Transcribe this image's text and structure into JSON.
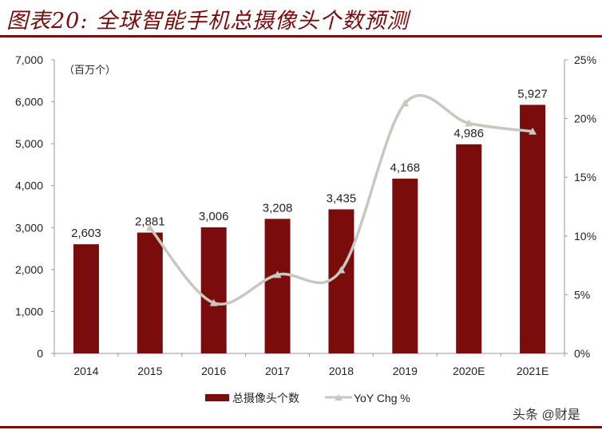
{
  "title": "图表20:  全球智能手机总摄像头个数预测",
  "watermark": "头条 @财是",
  "chart_data": {
    "type": "bar+line",
    "unit_note": "（百万个）",
    "categories": [
      "2014",
      "2015",
      "2016",
      "2017",
      "2018",
      "2019",
      "2020E",
      "2021E"
    ],
    "series": [
      {
        "name": "总摄像头个数",
        "type": "bar",
        "axis": "left",
        "color": "#7a0c0c",
        "values": [
          2603,
          2881,
          3006,
          3208,
          3435,
          4168,
          4986,
          5927
        ],
        "labels": [
          "2,603",
          "2,881",
          "3,006",
          "3,208",
          "3,435",
          "4,168",
          "4,986",
          "5,927"
        ]
      },
      {
        "name": "YoY Chg %",
        "type": "line",
        "axis": "right",
        "color": "#c8c8c0",
        "values": [
          null,
          10.7,
          4.3,
          6.7,
          7.1,
          21.3,
          19.6,
          18.9
        ]
      }
    ],
    "yleft": {
      "ylim": [
        0,
        7000
      ],
      "ticks": [
        "0",
        "1,000",
        "2,000",
        "3,000",
        "4,000",
        "5,000",
        "6,000",
        "7,000"
      ]
    },
    "yright": {
      "ylim": [
        0,
        25
      ],
      "ticks": [
        "0%",
        "5%",
        "10%",
        "15%",
        "20%",
        "25%"
      ]
    },
    "legend": "bottom",
    "grid": false
  }
}
